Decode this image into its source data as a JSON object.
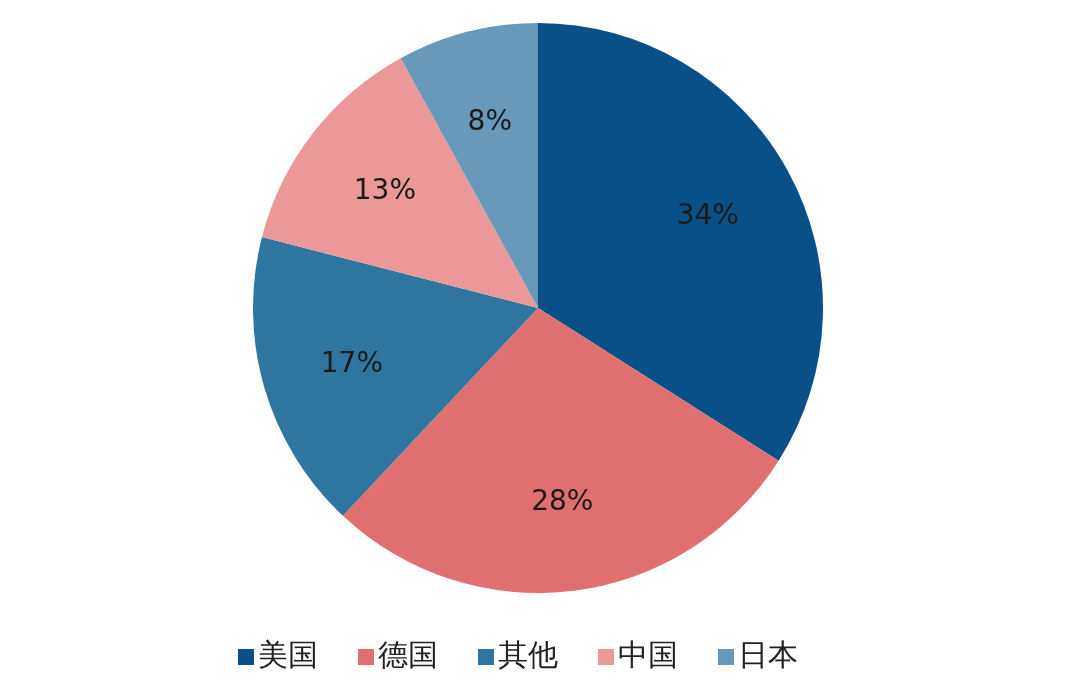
{
  "chart_data": {
    "type": "pie",
    "categories": [
      "美国",
      "德国",
      "其他",
      "中国",
      "日本"
    ],
    "values": [
      34,
      28,
      17,
      13,
      8
    ],
    "colors": [
      "#0a5088",
      "#e07070",
      "#2e75a0",
      "#eb9898",
      "#6899bb"
    ],
    "value_labels": [
      "34%",
      "28%",
      "17%",
      "13%",
      "8%"
    ],
    "legend": "bottom"
  }
}
